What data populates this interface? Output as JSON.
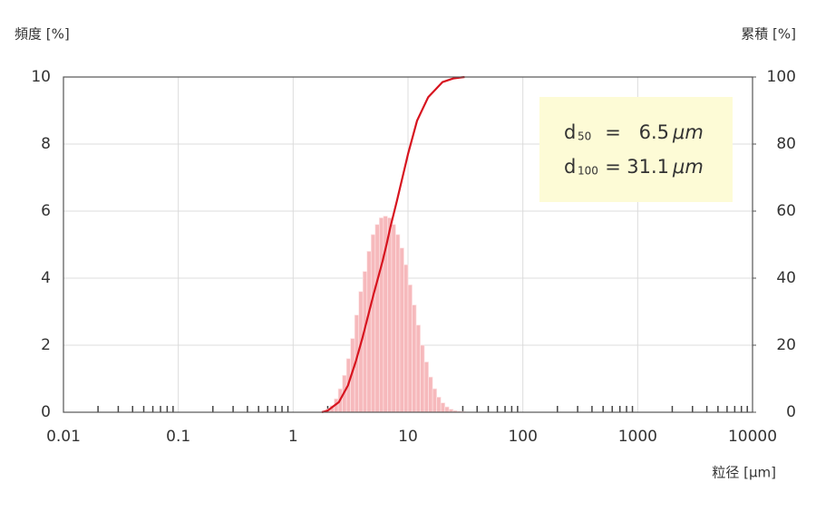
{
  "chart_data": {
    "type": "histogram",
    "xscale": "log",
    "xlabel": "粒径 [μm]",
    "ylabel": "頻度 [%]",
    "y2label": "累積 [%]",
    "xlim": [
      0.01,
      10000
    ],
    "xticks": [
      0.01,
      0.1,
      1,
      10,
      100,
      1000,
      10000
    ],
    "xminorticks": [
      0.02,
      0.03,
      0.04,
      0.05,
      0.06,
      0.07,
      0.08,
      0.09,
      0.2,
      0.3,
      0.4,
      0.5,
      0.6,
      0.7,
      0.8,
      0.9,
      2,
      3,
      4,
      5,
      6,
      7,
      8,
      9,
      20,
      30,
      40,
      50,
      60,
      70,
      80,
      90,
      200,
      300,
      400,
      500,
      600,
      700,
      800,
      900,
      2000,
      3000,
      4000,
      5000,
      6000,
      7000,
      8000,
      9000
    ],
    "ylim": [
      0,
      10
    ],
    "yticks": [
      0,
      2,
      4,
      6,
      8,
      10
    ],
    "y2lim": [
      0,
      100
    ],
    "y2ticks": [
      0,
      20,
      40,
      60,
      80,
      100
    ],
    "grid": true,
    "color": "#f6b9bc",
    "bins": [
      1.778,
      1.931,
      2.096,
      2.276,
      2.471,
      2.683,
      2.913,
      3.162,
      3.433,
      3.728,
      4.048,
      4.394,
      4.771,
      5.18,
      5.623,
      6.105,
      6.629,
      7.197,
      7.814,
      8.483,
      9.211,
      10.0,
      10.86,
      11.79,
      12.8,
      13.89,
      15.09,
      16.38,
      17.78,
      19.31,
      20.96,
      22.76,
      24.71,
      26.83,
      29.13,
      31.62
    ],
    "counts": [
      0.05,
      0.1,
      0.2,
      0.4,
      0.7,
      1.1,
      1.6,
      2.2,
      2.9,
      3.6,
      4.2,
      4.8,
      5.3,
      5.6,
      5.8,
      5.85,
      5.8,
      5.6,
      5.3,
      4.9,
      4.4,
      3.8,
      3.2,
      2.6,
      2.0,
      1.5,
      1.05,
      0.7,
      0.45,
      0.28,
      0.16,
      0.09,
      0.05,
      0.03,
      0.02
    ],
    "series": [
      {
        "type": "line",
        "axis": "y2",
        "color": "#d7141f",
        "x": [
          1.78,
          2,
          2.5,
          3,
          3.5,
          4,
          5,
          6,
          6.5,
          7,
          8,
          10,
          12,
          15,
          20,
          25,
          31.1
        ],
        "values": [
          0,
          0.5,
          3,
          8,
          15,
          22,
          35,
          45,
          50,
          55,
          63,
          77,
          87,
          94,
          98.5,
          99.6,
          100
        ]
      }
    ],
    "annotation": {
      "background": "#fdfbd6",
      "rows": [
        {
          "symbol": "d",
          "subscript": "50",
          "equals": "=",
          "value": "6.5",
          "unit": "μm"
        },
        {
          "symbol": "d",
          "subscript": "100",
          "equals": "=",
          "value": "31.1",
          "unit": "μm"
        }
      ]
    }
  }
}
